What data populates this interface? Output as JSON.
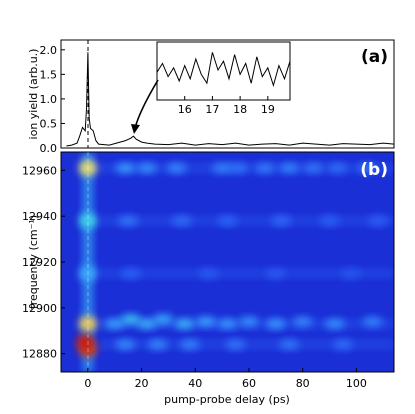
{
  "chart_data": [
    {
      "type": "line",
      "panel_label": "(a)",
      "xlabel": "",
      "ylabel": "ion yield (arb.u.)",
      "xlim": [
        -10,
        114
      ],
      "ylim": [
        0,
        2.2
      ],
      "yticks": [
        0.0,
        0.5,
        1.0,
        1.5,
        2.0
      ],
      "ytick_labels": [
        "0.0",
        "0.5",
        "1.0",
        "1.5",
        "2.0"
      ],
      "grid": false,
      "series": [
        {
          "x": [
            -8,
            -6,
            -4,
            -3,
            -2,
            -1,
            -0.5,
            0,
            0.5,
            1,
            2,
            3,
            4,
            6,
            8,
            10,
            12,
            14,
            16,
            17,
            18,
            20,
            22,
            25,
            30,
            35,
            40,
            45,
            50,
            55,
            60,
            65,
            70,
            75,
            80,
            85,
            90,
            95,
            100,
            105,
            110,
            114
          ],
          "y": [
            0.04,
            0.06,
            0.1,
            0.25,
            0.42,
            0.35,
            0.8,
            1.95,
            0.6,
            0.4,
            0.35,
            0.15,
            0.08,
            0.07,
            0.06,
            0.09,
            0.12,
            0.15,
            0.2,
            0.24,
            0.18,
            0.12,
            0.1,
            0.08,
            0.07,
            0.1,
            0.06,
            0.09,
            0.07,
            0.1,
            0.06,
            0.08,
            0.09,
            0.06,
            0.1,
            0.08,
            0.06,
            0.09,
            0.08,
            0.07,
            0.1,
            0.08
          ]
        }
      ],
      "annotations": [
        "arrow from trace near x=17 to inset"
      ]
    },
    {
      "type": "line",
      "role": "inset",
      "xlim": [
        15,
        19.8
      ],
      "xticks": [
        16,
        17,
        18,
        19
      ],
      "xtick_labels": [
        "16",
        "17",
        "18",
        "19"
      ],
      "series": [
        {
          "x": [
            15.0,
            15.2,
            15.4,
            15.6,
            15.8,
            16.0,
            16.2,
            16.4,
            16.6,
            16.8,
            17.0,
            17.2,
            17.4,
            17.6,
            17.8,
            18.0,
            18.2,
            18.4,
            18.6,
            18.8,
            19.0,
            19.2,
            19.4,
            19.6,
            19.8
          ],
          "y": [
            0.45,
            0.65,
            0.35,
            0.55,
            0.25,
            0.6,
            0.3,
            0.75,
            0.4,
            0.2,
            0.9,
            0.5,
            0.7,
            0.3,
            0.85,
            0.4,
            0.65,
            0.2,
            0.8,
            0.35,
            0.55,
            0.15,
            0.6,
            0.3,
            0.7
          ]
        }
      ]
    },
    {
      "type": "heatmap",
      "panel_label": "(b)",
      "xlabel": "pump-probe delay (ps)",
      "ylabel": "frequency (cm⁻¹)",
      "xlim": [
        -10,
        114
      ],
      "ylim": [
        12872,
        12968
      ],
      "xticks": [
        0,
        20,
        40,
        60,
        80,
        100
      ],
      "xtick_labels": [
        "0",
        "20",
        "40",
        "60",
        "80",
        "100"
      ],
      "yticks": [
        12880,
        12900,
        12920,
        12940,
        12960
      ],
      "ytick_labels": [
        "12880",
        "12900",
        "12920",
        "12940",
        "12960"
      ],
      "colormap": "jet",
      "colors": {
        "background": "#1a2fd6",
        "low": "#2b55ee",
        "mid": "#3aa0ff",
        "peak": "#c81a10"
      },
      "rows_frequency": [
        12961,
        12938,
        12915,
        12893,
        12884
      ],
      "points": [
        {
          "x": 0,
          "y": 12961,
          "v": 0.72
        },
        {
          "x": 0,
          "y": 12938,
          "v": 0.52
        },
        {
          "x": 0,
          "y": 12915,
          "v": 0.42
        },
        {
          "x": 0,
          "y": 12893,
          "v": 0.75
        },
        {
          "x": -1,
          "y": 12885,
          "v": 1.0
        },
        {
          "x": 0,
          "y": 12882,
          "v": 0.95
        },
        {
          "x": 14,
          "y": 12961,
          "v": 0.38
        },
        {
          "x": 22,
          "y": 12961,
          "v": 0.36
        },
        {
          "x": 33,
          "y": 12961,
          "v": 0.34
        },
        {
          "x": 50,
          "y": 12961,
          "v": 0.33
        },
        {
          "x": 56,
          "y": 12961,
          "v": 0.3
        },
        {
          "x": 66,
          "y": 12961,
          "v": 0.31
        },
        {
          "x": 75,
          "y": 12961,
          "v": 0.33
        },
        {
          "x": 84,
          "y": 12961,
          "v": 0.3
        },
        {
          "x": 93,
          "y": 12961,
          "v": 0.28
        },
        {
          "x": 104,
          "y": 12961,
          "v": 0.29
        },
        {
          "x": 15,
          "y": 12938,
          "v": 0.3
        },
        {
          "x": 35,
          "y": 12938,
          "v": 0.28
        },
        {
          "x": 52,
          "y": 12938,
          "v": 0.26
        },
        {
          "x": 72,
          "y": 12938,
          "v": 0.27
        },
        {
          "x": 90,
          "y": 12938,
          "v": 0.25
        },
        {
          "x": 108,
          "y": 12938,
          "v": 0.24
        },
        {
          "x": 16,
          "y": 12915,
          "v": 0.25
        },
        {
          "x": 45,
          "y": 12915,
          "v": 0.22
        },
        {
          "x": 70,
          "y": 12915,
          "v": 0.22
        },
        {
          "x": 98,
          "y": 12915,
          "v": 0.2
        },
        {
          "x": 10,
          "y": 12893,
          "v": 0.4
        },
        {
          "x": 16,
          "y": 12895,
          "v": 0.48
        },
        {
          "x": 22,
          "y": 12893,
          "v": 0.44
        },
        {
          "x": 28,
          "y": 12895,
          "v": 0.42
        },
        {
          "x": 36,
          "y": 12893,
          "v": 0.45
        },
        {
          "x": 44,
          "y": 12894,
          "v": 0.4
        },
        {
          "x": 52,
          "y": 12893,
          "v": 0.38
        },
        {
          "x": 60,
          "y": 12894,
          "v": 0.36
        },
        {
          "x": 70,
          "y": 12893,
          "v": 0.38
        },
        {
          "x": 80,
          "y": 12894,
          "v": 0.34
        },
        {
          "x": 92,
          "y": 12893,
          "v": 0.36
        },
        {
          "x": 106,
          "y": 12894,
          "v": 0.33
        },
        {
          "x": 14,
          "y": 12884,
          "v": 0.35
        },
        {
          "x": 26,
          "y": 12884,
          "v": 0.34
        },
        {
          "x": 38,
          "y": 12884,
          "v": 0.33
        },
        {
          "x": 55,
          "y": 12884,
          "v": 0.3
        },
        {
          "x": 75,
          "y": 12884,
          "v": 0.3
        },
        {
          "x": 95,
          "y": 12884,
          "v": 0.28
        }
      ]
    }
  ]
}
